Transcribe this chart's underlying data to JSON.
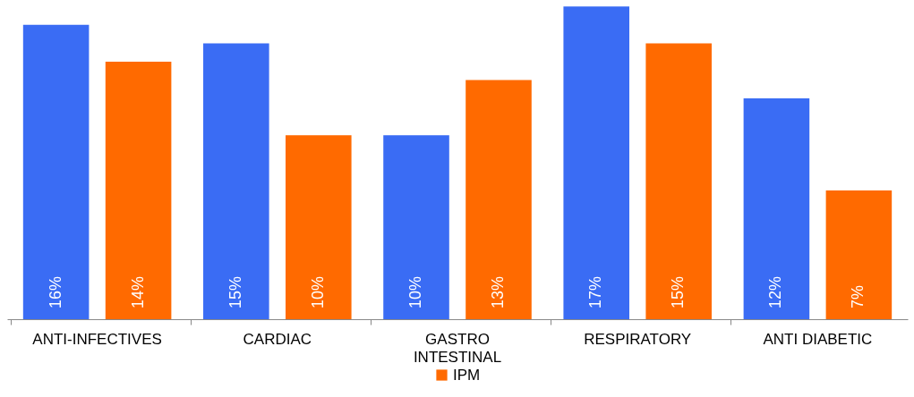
{
  "chart_data": {
    "type": "bar",
    "categories": [
      "ANTI-INFECTIVES",
      "CARDIAC",
      "GASTRO INTESTINAL",
      "RESPIRATORY",
      "ANTI DIABETIC"
    ],
    "series": [
      {
        "color": "#3a6cf4",
        "values": [
          16,
          15,
          10,
          17,
          12
        ],
        "value_labels": [
          "16%",
          "15%",
          "10%",
          "17%",
          "12%"
        ]
      },
      {
        "name": "IPM",
        "color": "#ff6a00",
        "values": [
          14,
          10,
          13,
          15,
          7
        ],
        "value_labels": [
          "14%",
          "10%",
          "13%",
          "15%",
          "7%"
        ]
      }
    ],
    "tick_labels": "x",
    "grid": false,
    "legend": "bottom"
  }
}
